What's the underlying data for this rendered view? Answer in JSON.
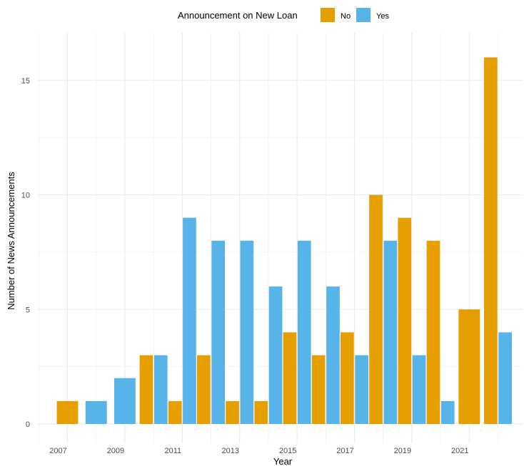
{
  "chart_data": {
    "type": "bar",
    "title": "",
    "xlabel": "Year",
    "ylabel": "Number of News Announcements",
    "legend": {
      "title": "Announcement on New Loan",
      "position": "top"
    },
    "x": [
      2007,
      2008,
      2009,
      2010,
      2011,
      2012,
      2013,
      2014,
      2015,
      2016,
      2017,
      2018,
      2019,
      2020,
      2021,
      2022
    ],
    "x_ticks": [
      "2007",
      "2009",
      "2011",
      "2013",
      "2015",
      "2017",
      "2019",
      "2021"
    ],
    "y_ticks": [
      "0",
      "5",
      "10",
      "15"
    ],
    "ylim": [
      0,
      16.8
    ],
    "grid": true,
    "series": [
      {
        "name": "No",
        "color": "#E69F00",
        "points": [
          {
            "x": 2007,
            "y": 1
          },
          {
            "x": 2010,
            "y": 3
          },
          {
            "x": 2011,
            "y": 1
          },
          {
            "x": 2012,
            "y": 3
          },
          {
            "x": 2013,
            "y": 1
          },
          {
            "x": 2014,
            "y": 1
          },
          {
            "x": 2015,
            "y": 4
          },
          {
            "x": 2016,
            "y": 3
          },
          {
            "x": 2017,
            "y": 4
          },
          {
            "x": 2018,
            "y": 10
          },
          {
            "x": 2019,
            "y": 9
          },
          {
            "x": 2020,
            "y": 8
          },
          {
            "x": 2021,
            "y": 5
          },
          {
            "x": 2022,
            "y": 16
          }
        ]
      },
      {
        "name": "Yes",
        "color": "#56B4E9",
        "points": [
          {
            "x": 2008,
            "y": 1
          },
          {
            "x": 2009,
            "y": 2
          },
          {
            "x": 2010,
            "y": 3
          },
          {
            "x": 2011,
            "y": 9
          },
          {
            "x": 2012,
            "y": 8
          },
          {
            "x": 2013,
            "y": 8
          },
          {
            "x": 2014,
            "y": 6
          },
          {
            "x": 2015,
            "y": 8
          },
          {
            "x": 2016,
            "y": 6
          },
          {
            "x": 2017,
            "y": 3
          },
          {
            "x": 2018,
            "y": 8
          },
          {
            "x": 2019,
            "y": 3
          },
          {
            "x": 2020,
            "y": 1
          },
          {
            "x": 2022,
            "y": 4
          }
        ]
      }
    ]
  }
}
